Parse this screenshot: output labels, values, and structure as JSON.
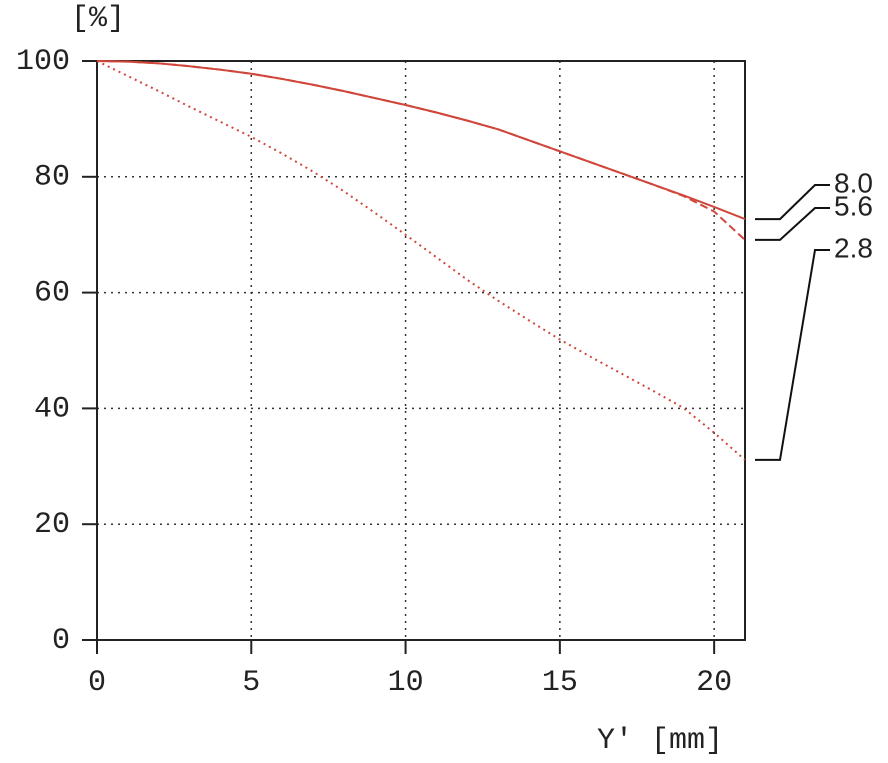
{
  "chart_data": {
    "type": "line",
    "y_label": "[%]",
    "x_label": "Y' [mm]",
    "x": [
      0,
      1,
      2,
      3,
      4,
      5,
      6,
      7,
      8,
      9,
      10,
      11,
      12,
      13,
      14,
      15,
      16,
      17,
      18,
      19,
      20,
      21
    ],
    "series": [
      {
        "name": "8.0",
        "color": "#d0463a",
        "dash": "solid",
        "values": [
          100,
          99.9,
          99.6,
          99.1,
          98.5,
          97.8,
          96.9,
          95.9,
          94.8,
          93.6,
          92.4,
          91.1,
          89.7,
          88.2,
          86.3,
          84.4,
          82.5,
          80.6,
          78.7,
          76.8,
          74.8,
          72.7
        ]
      },
      {
        "name": "5.6",
        "color": "#d0463a",
        "dash": "dashed",
        "values": [
          100,
          99.9,
          99.6,
          99.1,
          98.5,
          97.8,
          96.9,
          95.9,
          94.8,
          93.6,
          92.4,
          91.1,
          89.7,
          88.2,
          86.3,
          84.4,
          82.5,
          80.6,
          78.7,
          76.7,
          74.0,
          69.1
        ]
      },
      {
        "name": "2.8",
        "color": "#d0463a",
        "dash": "dotted",
        "values": [
          100,
          97.4,
          94.8,
          92.1,
          89.5,
          86.9,
          84.0,
          80.9,
          77.5,
          73.8,
          70.0,
          66.1,
          62.2,
          58.6,
          55.2,
          51.9,
          48.9,
          46.0,
          43.1,
          40.1,
          35.8,
          31.1
        ]
      }
    ],
    "xlim": [
      0,
      21
    ],
    "ylim": [
      0,
      100
    ],
    "xticks": [
      0,
      5,
      10,
      15,
      20
    ],
    "yticks": [
      0,
      20,
      40,
      60,
      80,
      100
    ],
    "grid": true
  }
}
